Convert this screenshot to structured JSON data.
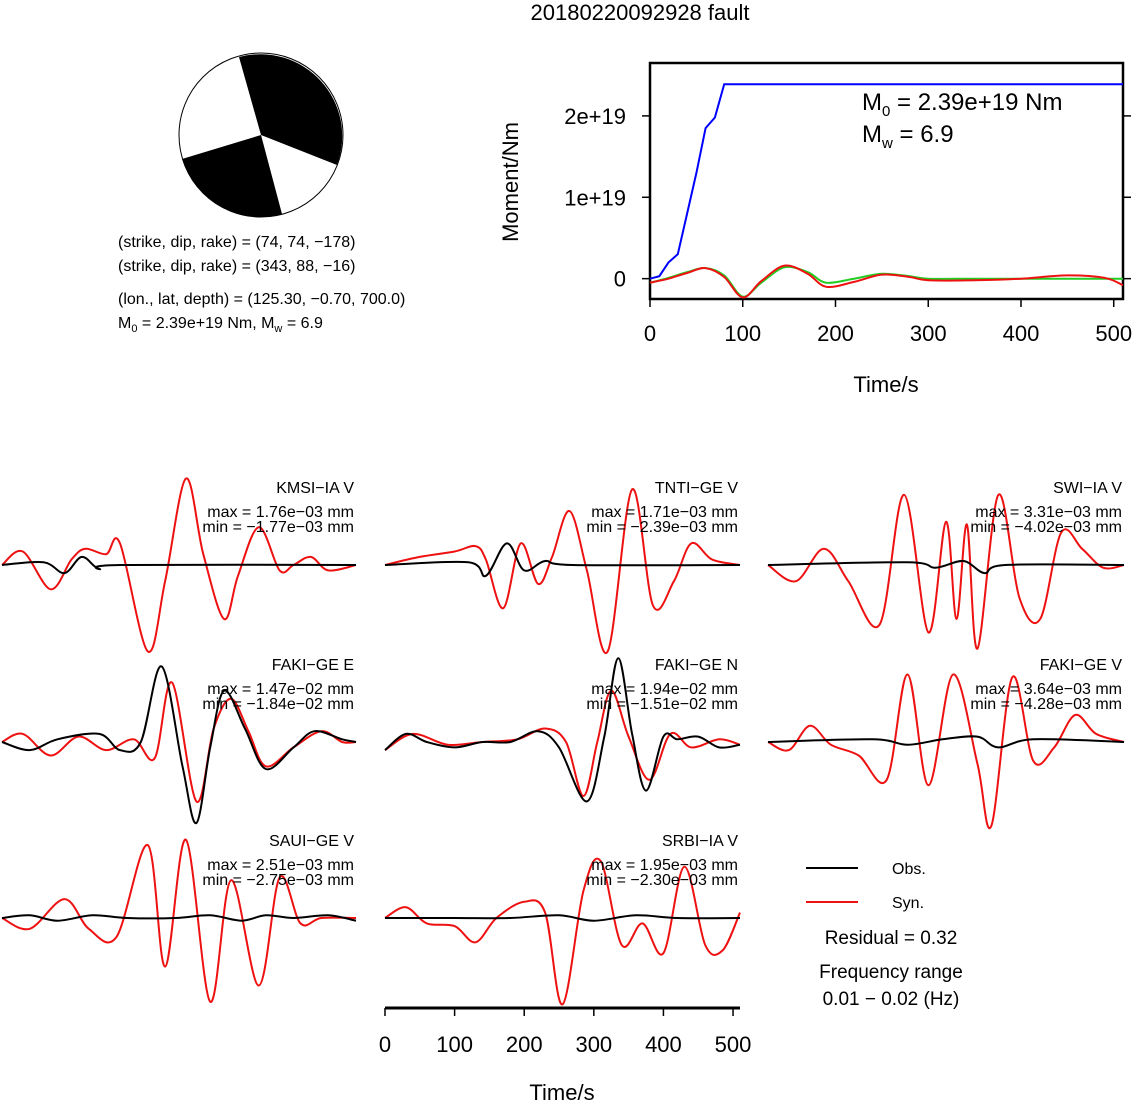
{
  "title": "20180220092928 fault",
  "mechanism": {
    "plane1": "(strike, dip, rake) = (74, 74, −178)",
    "plane2": "(strike, dip, rake) = (343, 88, −16)",
    "location": "(lon., lat, depth) = (125.30, −0.70, 700.0)",
    "m0_prefix": "M",
    "m0_sub": "0",
    "m0_rest": " = 2.39e+19 Nm, M",
    "mw_sub": "w",
    "mw_rest": " = 6.9"
  },
  "moment_chart": {
    "type": "line",
    "ylabel": "Moment/Nm",
    "xlabel": "Time/s",
    "xlim": [
      0,
      510
    ],
    "ylim": [
      -2.5e+18,
      2.65e+19
    ],
    "xticks": [
      0,
      100,
      200,
      300,
      400,
      500
    ],
    "yticks": [
      {
        "value": 0,
        "label": "0"
      },
      {
        "value": 1e+19,
        "label": "1e+19"
      },
      {
        "value": 2e+19,
        "label": "2e+19"
      }
    ],
    "annotation": {
      "m0_prefix": "M",
      "m0_sub": "0",
      "m0_rest": " = 2.39e+19 Nm",
      "mw_prefix": "M",
      "mw_sub": "w",
      "mw_rest": " = 6.9"
    },
    "colors": {
      "cumulative": "#0000ff",
      "rate_red": "#ee1111",
      "rate_green": "#22cc22"
    },
    "series": [
      {
        "color": "#0000ff",
        "x": [
          0,
          10,
          20,
          30,
          40,
          50,
          60,
          70,
          80,
          100,
          200,
          300,
          400,
          510
        ],
        "y": [
          0,
          3e+17,
          2e+18,
          3e+18,
          8e+18,
          1.3e+19,
          1.85e+19,
          1.98e+19,
          2.39e+19,
          2.39e+19,
          2.39e+19,
          2.39e+19,
          2.39e+19,
          2.39e+19
        ]
      },
      {
        "color": "#22cc22",
        "x": [
          0,
          20,
          40,
          60,
          80,
          100,
          120,
          145,
          170,
          190,
          220,
          250,
          280,
          300,
          350,
          400,
          450,
          510
        ],
        "y": [
          -5e+17,
          1e+17,
          8e+17,
          1.3e+18,
          4e+17,
          -2.2e+18,
          -5e+17,
          1.4e+18,
          8e+17,
          -5e+17,
          0,
          6e+17,
          3e+17,
          0,
          0,
          0,
          0,
          0
        ]
      },
      {
        "color": "#ee1111",
        "x": [
          0,
          20,
          40,
          60,
          80,
          100,
          120,
          145,
          170,
          190,
          220,
          250,
          280,
          300,
          350,
          400,
          450,
          490,
          510
        ],
        "y": [
          -5e+17,
          0,
          7e+17,
          1.3e+18,
          2e+17,
          -2.3e+18,
          -3e+17,
          1.6e+18,
          6e+17,
          -1e+18,
          -4e+17,
          5e+17,
          2e+17,
          -2e+17,
          -2e+17,
          0,
          4e+17,
          1e+17,
          -8e+17
        ]
      }
    ]
  },
  "waveforms": {
    "xlabel": "Time/s",
    "xlim": [
      0,
      510
    ],
    "xticks": [
      0,
      100,
      200,
      300,
      400,
      500
    ],
    "obs_color": "#000000",
    "syn_color": "#ee1111",
    "panels": [
      {
        "station": "KMSI−IA V",
        "max": "max = 1.76e−03 mm",
        "min": "min = −1.77e−03 mm",
        "obs": [
          [
            0,
            0
          ],
          [
            60,
            0.1
          ],
          [
            90,
            -0.3
          ],
          [
            115,
            0.3
          ],
          [
            140,
            -0.15
          ],
          [
            170,
            0
          ],
          [
            510,
            0
          ]
        ],
        "syn": [
          [
            0,
            0
          ],
          [
            30,
            0.5
          ],
          [
            70,
            -0.9
          ],
          [
            100,
            0.2
          ],
          [
            120,
            0.6
          ],
          [
            150,
            0.4
          ],
          [
            170,
            0.8
          ],
          [
            210,
            -3.2
          ],
          [
            235,
            -0.6
          ],
          [
            265,
            3.2
          ],
          [
            290,
            0.4
          ],
          [
            320,
            -2.0
          ],
          [
            340,
            -0.4
          ],
          [
            370,
            1.4
          ],
          [
            400,
            -0.2
          ],
          [
            420,
            0
          ],
          [
            445,
            0.3
          ],
          [
            470,
            -0.2
          ],
          [
            510,
            0
          ]
        ]
      },
      {
        "station": "TNTI−GE V",
        "max": "max = 1.71e−03 mm",
        "min": "min = −2.39e−03 mm",
        "obs": [
          [
            0,
            0
          ],
          [
            120,
            0.1
          ],
          [
            145,
            -0.4
          ],
          [
            175,
            0.8
          ],
          [
            200,
            -0.2
          ],
          [
            230,
            0.15
          ],
          [
            270,
            0
          ],
          [
            510,
            0
          ]
        ],
        "syn": [
          [
            0,
            0
          ],
          [
            50,
            0.3
          ],
          [
            100,
            0.5
          ],
          [
            130,
            0.7
          ],
          [
            145,
            0.2
          ],
          [
            170,
            -1.6
          ],
          [
            195,
            0.8
          ],
          [
            220,
            -0.7
          ],
          [
            240,
            0.3
          ],
          [
            265,
            2.0
          ],
          [
            290,
            -0.2
          ],
          [
            320,
            -3.2
          ],
          [
            355,
            2.8
          ],
          [
            385,
            -1.5
          ],
          [
            415,
            -0.6
          ],
          [
            440,
            0.8
          ],
          [
            470,
            0.2
          ],
          [
            510,
            0
          ]
        ]
      },
      {
        "station": "SWI−IA V",
        "max": "max = 3.31e−03 mm",
        "min": "min = −4.02e−03 mm",
        "obs": [
          [
            0,
            0
          ],
          [
            200,
            0.1
          ],
          [
            240,
            -0.1
          ],
          [
            280,
            0.15
          ],
          [
            310,
            -0.3
          ],
          [
            340,
            0
          ],
          [
            510,
            0
          ]
        ],
        "syn": [
          [
            0,
            0
          ],
          [
            40,
            -0.6
          ],
          [
            80,
            0.6
          ],
          [
            115,
            -0.6
          ],
          [
            160,
            -2.2
          ],
          [
            195,
            2.6
          ],
          [
            230,
            -2.5
          ],
          [
            255,
            1.6
          ],
          [
            270,
            -2.0
          ],
          [
            285,
            1.5
          ],
          [
            300,
            -3.1
          ],
          [
            330,
            2.6
          ],
          [
            360,
            -1.2
          ],
          [
            390,
            -2.0
          ],
          [
            420,
            1.2
          ],
          [
            450,
            0.6
          ],
          [
            480,
            -0.1
          ],
          [
            510,
            0
          ]
        ]
      },
      {
        "station": "FAKI−GE E",
        "max": "max = 1.47e−02 mm",
        "min": "min = −1.84e−02 mm",
        "obs": [
          [
            0,
            0
          ],
          [
            40,
            -0.3
          ],
          [
            80,
            0.1
          ],
          [
            140,
            0.3
          ],
          [
            170,
            -0.3
          ],
          [
            200,
            0
          ],
          [
            230,
            2.8
          ],
          [
            260,
            -0.9
          ],
          [
            280,
            -3.0
          ],
          [
            300,
            -0.2
          ],
          [
            320,
            1.9
          ],
          [
            350,
            0.5
          ],
          [
            380,
            -1.0
          ],
          [
            420,
            -0.2
          ],
          [
            450,
            0.4
          ],
          [
            490,
            0.1
          ],
          [
            510,
            0
          ]
        ],
        "syn": [
          [
            0,
            0
          ],
          [
            30,
            0.3
          ],
          [
            70,
            -0.5
          ],
          [
            110,
            0.2
          ],
          [
            150,
            -0.3
          ],
          [
            190,
            0.1
          ],
          [
            220,
            -0.6
          ],
          [
            245,
            2.2
          ],
          [
            280,
            -2.2
          ],
          [
            305,
            0.5
          ],
          [
            330,
            1.6
          ],
          [
            355,
            0.4
          ],
          [
            380,
            -0.9
          ],
          [
            420,
            -0.2
          ],
          [
            460,
            0.4
          ],
          [
            490,
            0
          ],
          [
            510,
            0
          ]
        ]
      },
      {
        "station": "FAKI−GE N",
        "max": "max = 1.94e−02 mm",
        "min": "min = −1.51e−02 mm",
        "obs": [
          [
            0,
            -0.3
          ],
          [
            30,
            0.3
          ],
          [
            60,
            0
          ],
          [
            100,
            -0.2
          ],
          [
            140,
            0
          ],
          [
            180,
            0
          ],
          [
            220,
            0.4
          ],
          [
            250,
            -0.2
          ],
          [
            290,
            -2.2
          ],
          [
            315,
            0.2
          ],
          [
            335,
            3.1
          ],
          [
            355,
            0.3
          ],
          [
            375,
            -1.8
          ],
          [
            400,
            0.2
          ],
          [
            420,
            0.1
          ],
          [
            450,
            0.2
          ],
          [
            480,
            -0.2
          ],
          [
            510,
            -0.1
          ]
        ],
        "syn": [
          [
            0,
            -0.3
          ],
          [
            40,
            0.3
          ],
          [
            90,
            -0.1
          ],
          [
            140,
            0
          ],
          [
            190,
            0.1
          ],
          [
            230,
            0.5
          ],
          [
            260,
            0
          ],
          [
            285,
            -2.0
          ],
          [
            305,
            0
          ],
          [
            325,
            1.9
          ],
          [
            350,
            0.2
          ],
          [
            380,
            -1.4
          ],
          [
            410,
            0.3
          ],
          [
            440,
            -0.2
          ],
          [
            480,
            0.1
          ],
          [
            510,
            -0.1
          ]
        ]
      },
      {
        "station": "FAKI−GE V",
        "max": "max = 3.64e−03 mm",
        "min": "min = −4.28e−03 mm",
        "obs": [
          [
            0,
            0
          ],
          [
            150,
            0.1
          ],
          [
            200,
            -0.1
          ],
          [
            250,
            0.1
          ],
          [
            300,
            0.2
          ],
          [
            330,
            -0.2
          ],
          [
            380,
            0.1
          ],
          [
            510,
            0
          ]
        ],
        "syn": [
          [
            0,
            0
          ],
          [
            30,
            -0.3
          ],
          [
            60,
            0.6
          ],
          [
            90,
            -0.1
          ],
          [
            130,
            -0.5
          ],
          [
            170,
            -1.4
          ],
          [
            200,
            2.5
          ],
          [
            230,
            -1.6
          ],
          [
            265,
            2.5
          ],
          [
            300,
            -0.8
          ],
          [
            320,
            -3.1
          ],
          [
            350,
            2.4
          ],
          [
            380,
            -0.7
          ],
          [
            410,
            -0.2
          ],
          [
            440,
            1.0
          ],
          [
            470,
            0.3
          ],
          [
            510,
            0
          ]
        ]
      },
      {
        "station": "SAUI−GE V",
        "max": "max = 2.51e−03 mm",
        "min": "min = −2.75e−03 mm",
        "obs": [
          [
            0,
            0
          ],
          [
            40,
            0.1
          ],
          [
            80,
            -0.1
          ],
          [
            130,
            0.1
          ],
          [
            180,
            0
          ],
          [
            250,
            0
          ],
          [
            300,
            0.1
          ],
          [
            345,
            -0.1
          ],
          [
            380,
            0.1
          ],
          [
            420,
            0
          ],
          [
            470,
            0.1
          ],
          [
            510,
            -0.1
          ]
        ],
        "syn": [
          [
            0,
            0
          ],
          [
            40,
            -0.4
          ],
          [
            90,
            0.7
          ],
          [
            125,
            -0.4
          ],
          [
            165,
            -0.7
          ],
          [
            210,
            2.7
          ],
          [
            235,
            -1.8
          ],
          [
            265,
            2.9
          ],
          [
            300,
            -3.1
          ],
          [
            330,
            1.4
          ],
          [
            370,
            -2.5
          ],
          [
            400,
            1.5
          ],
          [
            430,
            -0.2
          ],
          [
            460,
            0
          ],
          [
            510,
            0
          ]
        ]
      },
      {
        "station": "SRBI−IA V",
        "max": "max = 1.95e−03 mm",
        "min": "min = −2.30e−03 mm",
        "obs": [
          [
            0,
            0
          ],
          [
            100,
            0
          ],
          [
            180,
            0
          ],
          [
            250,
            0.1
          ],
          [
            300,
            -0.1
          ],
          [
            360,
            0.1
          ],
          [
            420,
            0
          ],
          [
            510,
            0
          ]
        ],
        "syn": [
          [
            0,
            0
          ],
          [
            30,
            0.4
          ],
          [
            60,
            -0.2
          ],
          [
            100,
            -0.3
          ],
          [
            130,
            -0.9
          ],
          [
            160,
            0
          ],
          [
            200,
            0.6
          ],
          [
            230,
            0.2
          ],
          [
            255,
            -3.2
          ],
          [
            285,
            1.0
          ],
          [
            310,
            2.1
          ],
          [
            340,
            -1.0
          ],
          [
            370,
            -0.2
          ],
          [
            400,
            -1.3
          ],
          [
            430,
            1.9
          ],
          [
            460,
            -1.0
          ],
          [
            485,
            -1.2
          ],
          [
            510,
            0.2
          ]
        ]
      }
    ]
  },
  "legend": {
    "obs_label": "Obs.",
    "syn_label": "Syn."
  },
  "residual": "Residual = 0.32",
  "frequency_title": "Frequency range",
  "frequency_range": "0.01 − 0.02 (Hz)"
}
